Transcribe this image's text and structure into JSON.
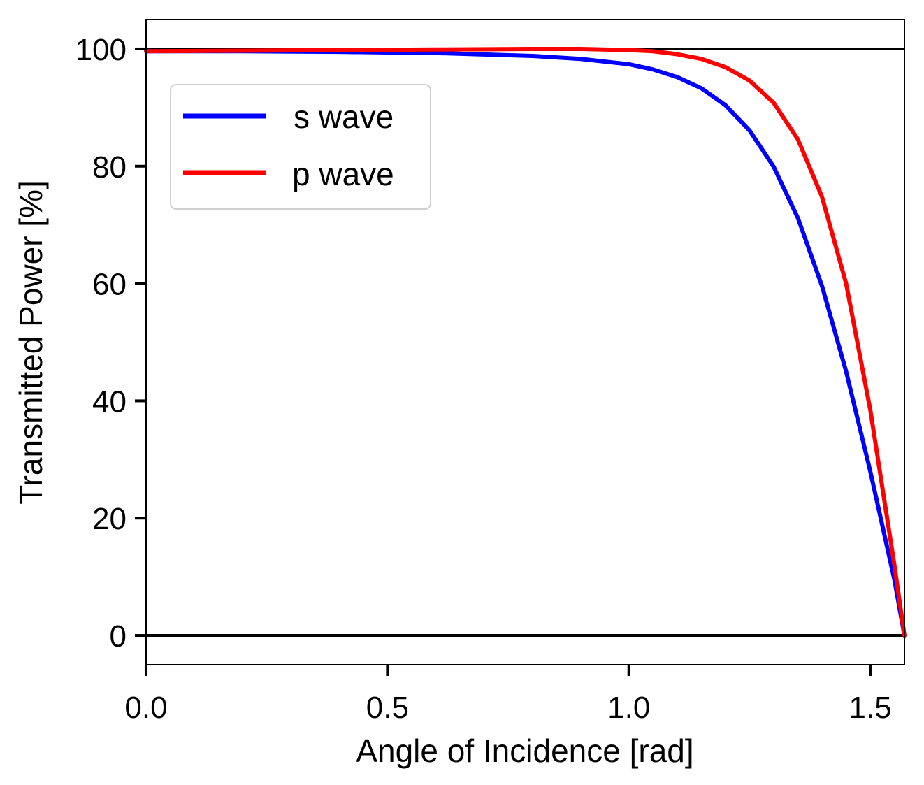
{
  "chart_data": {
    "type": "line",
    "title": "",
    "xlabel": "Angle of Incidence [rad]",
    "ylabel": "Transmitted Power [%]",
    "xlim": [
      0,
      1.5708
    ],
    "ylim": [
      -5,
      105
    ],
    "xticks": [
      0.0,
      0.5,
      1.0,
      1.5
    ],
    "xtick_labels": [
      "0.0",
      "0.5",
      "1.0",
      "1.5"
    ],
    "yticks": [
      0,
      20,
      40,
      60,
      80,
      100
    ],
    "ytick_labels": [
      "0",
      "20",
      "40",
      "60",
      "80",
      "100"
    ],
    "grid": false,
    "legend_position": "upper-left",
    "reference_lines": [
      0,
      100
    ],
    "colors": {
      "s_wave": "#0000ff",
      "p_wave": "#ff0000",
      "reference": "#000000"
    },
    "series": [
      {
        "name": "s wave",
        "color": "#0000ff",
        "x": [
          0.0,
          0.2,
          0.4,
          0.6,
          0.8,
          0.9,
          1.0,
          1.05,
          1.1,
          1.15,
          1.2,
          1.25,
          1.3,
          1.35,
          1.4,
          1.45,
          1.5,
          1.55,
          1.5708
        ],
        "y": [
          99.6,
          99.6,
          99.5,
          99.3,
          98.8,
          98.3,
          97.4,
          96.5,
          95.2,
          93.3,
          90.4,
          86.1,
          79.9,
          71.2,
          59.6,
          45.0,
          28.0,
          9.5,
          0.0
        ]
      },
      {
        "name": "p wave",
        "color": "#ff0000",
        "x": [
          0.0,
          0.2,
          0.4,
          0.6,
          0.8,
          0.9,
          1.0,
          1.05,
          1.1,
          1.15,
          1.2,
          1.25,
          1.3,
          1.35,
          1.4,
          1.45,
          1.5,
          1.55,
          1.5708
        ],
        "y": [
          99.6,
          99.7,
          99.8,
          99.9,
          100.0,
          100.0,
          99.8,
          99.6,
          99.1,
          98.3,
          96.9,
          94.6,
          90.8,
          84.6,
          74.8,
          60.0,
          38.5,
          12.0,
          0.0
        ]
      }
    ]
  }
}
